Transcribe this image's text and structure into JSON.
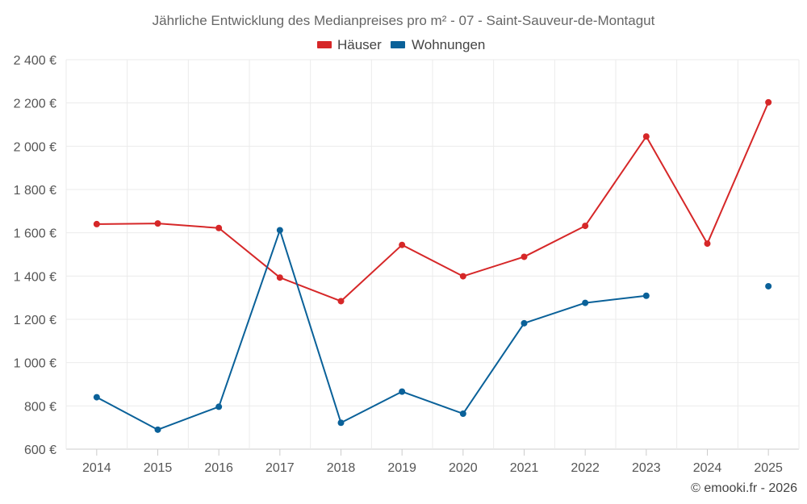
{
  "chart_data": {
    "type": "line",
    "title": "Jährliche Entwicklung des Medianpreises pro m² - 07 - Saint-Sauveur-de-Montagut",
    "xlabel": "",
    "ylabel": "",
    "categories": [
      "2014",
      "2015",
      "2016",
      "2017",
      "2018",
      "2019",
      "2020",
      "2021",
      "2022",
      "2023",
      "2024",
      "2025"
    ],
    "ylim": [
      600,
      2400
    ],
    "yticks": [
      600,
      800,
      1000,
      1200,
      1400,
      1600,
      1800,
      2000,
      2200,
      2400
    ],
    "ytick_labels": [
      "600 €",
      "800 €",
      "1 000 €",
      "1 200 €",
      "1 400 €",
      "1 600 €",
      "1 800 €",
      "2 000 €",
      "2 200 €",
      "2 400 €"
    ],
    "legend_position": "top-center",
    "series": [
      {
        "name": "Häuser",
        "color": "#d62728",
        "values": [
          1640,
          1643,
          1622,
          1393,
          1284,
          1544,
          1399,
          1489,
          1632,
          2045,
          1550,
          2203
        ]
      },
      {
        "name": "Wohnungen",
        "color": "#0a6199",
        "values": [
          840,
          690,
          796,
          1612,
          722,
          866,
          764,
          1182,
          1276,
          1309,
          null,
          1353
        ]
      }
    ]
  },
  "credit": "© emooki.fr - 2026"
}
